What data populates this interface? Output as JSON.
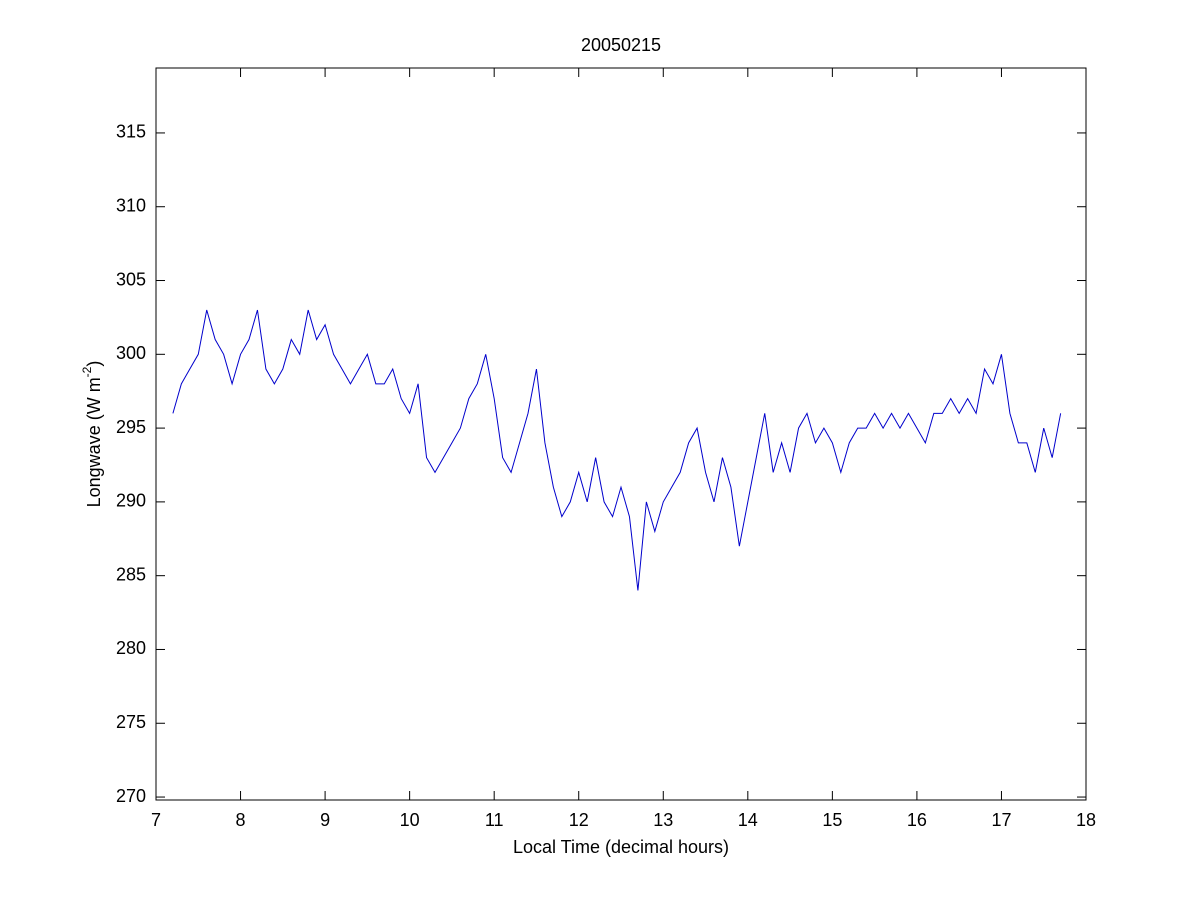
{
  "chart_data": {
    "type": "line",
    "title": "20050215",
    "xlabel": "Local Time (decimal hours)",
    "ylabel": {
      "text": "Longwave (W m",
      "superscript": "-2",
      "suffix": ")"
    },
    "x": [
      7.2,
      7.3,
      7.4,
      7.5,
      7.6,
      7.7,
      7.8,
      7.9,
      8.0,
      8.1,
      8.2,
      8.3,
      8.4,
      8.5,
      8.6,
      8.7,
      8.8,
      8.9,
      9.0,
      9.1,
      9.2,
      9.3,
      9.4,
      9.5,
      9.6,
      9.7,
      9.8,
      9.9,
      10.0,
      10.1,
      10.2,
      10.3,
      10.4,
      10.5,
      10.6,
      10.7,
      10.8,
      10.9,
      11.0,
      11.1,
      11.2,
      11.3,
      11.4,
      11.5,
      11.6,
      11.7,
      11.8,
      11.9,
      12.0,
      12.1,
      12.2,
      12.3,
      12.4,
      12.5,
      12.6,
      12.7,
      12.8,
      12.9,
      13.0,
      13.1,
      13.2,
      13.3,
      13.4,
      13.5,
      13.6,
      13.7,
      13.8,
      13.9,
      14.0,
      14.1,
      14.2,
      14.3,
      14.4,
      14.5,
      14.6,
      14.7,
      14.8,
      14.9,
      15.0,
      15.1,
      15.2,
      15.3,
      15.4,
      15.5,
      15.6,
      15.7,
      15.8,
      15.9,
      16.0,
      16.1,
      16.2,
      16.3,
      16.4,
      16.5,
      16.6,
      16.7,
      16.8,
      16.9,
      17.0,
      17.1,
      17.2,
      17.3,
      17.4,
      17.5,
      17.6,
      17.7
    ],
    "series": [
      {
        "color": "#0000cc",
        "values": [
          296,
          298,
          299,
          300,
          303,
          301,
          300,
          298,
          300,
          301,
          303,
          299,
          298,
          299,
          301,
          300,
          303,
          301,
          302,
          300,
          299,
          298,
          299,
          300,
          298,
          298,
          299,
          297,
          296,
          298,
          293,
          292,
          293,
          294,
          295,
          297,
          298,
          300,
          297,
          293,
          292,
          294,
          296,
          299,
          294,
          291,
          289,
          290,
          292,
          290,
          293,
          290,
          289,
          291,
          289,
          284,
          290,
          288,
          290,
          291,
          292,
          294,
          295,
          292,
          290,
          293,
          291,
          287,
          290,
          293,
          296,
          292,
          294,
          292,
          295,
          296,
          294,
          295,
          294,
          292,
          294,
          295,
          295,
          296,
          295,
          296,
          295,
          296,
          295,
          294,
          296,
          296,
          297,
          296,
          297,
          296,
          299,
          298,
          300,
          296,
          294,
          294,
          292,
          295,
          293,
          296
        ]
      }
    ],
    "xlim": [
      7,
      18
    ],
    "xticks": [
      7,
      8,
      9,
      10,
      11,
      12,
      13,
      14,
      15,
      16,
      17,
      18
    ],
    "ylim": [
      269.8,
      319.4
    ],
    "yticks": [
      270,
      275,
      280,
      285,
      290,
      295,
      300,
      305,
      310,
      315
    ],
    "grid": false
  }
}
